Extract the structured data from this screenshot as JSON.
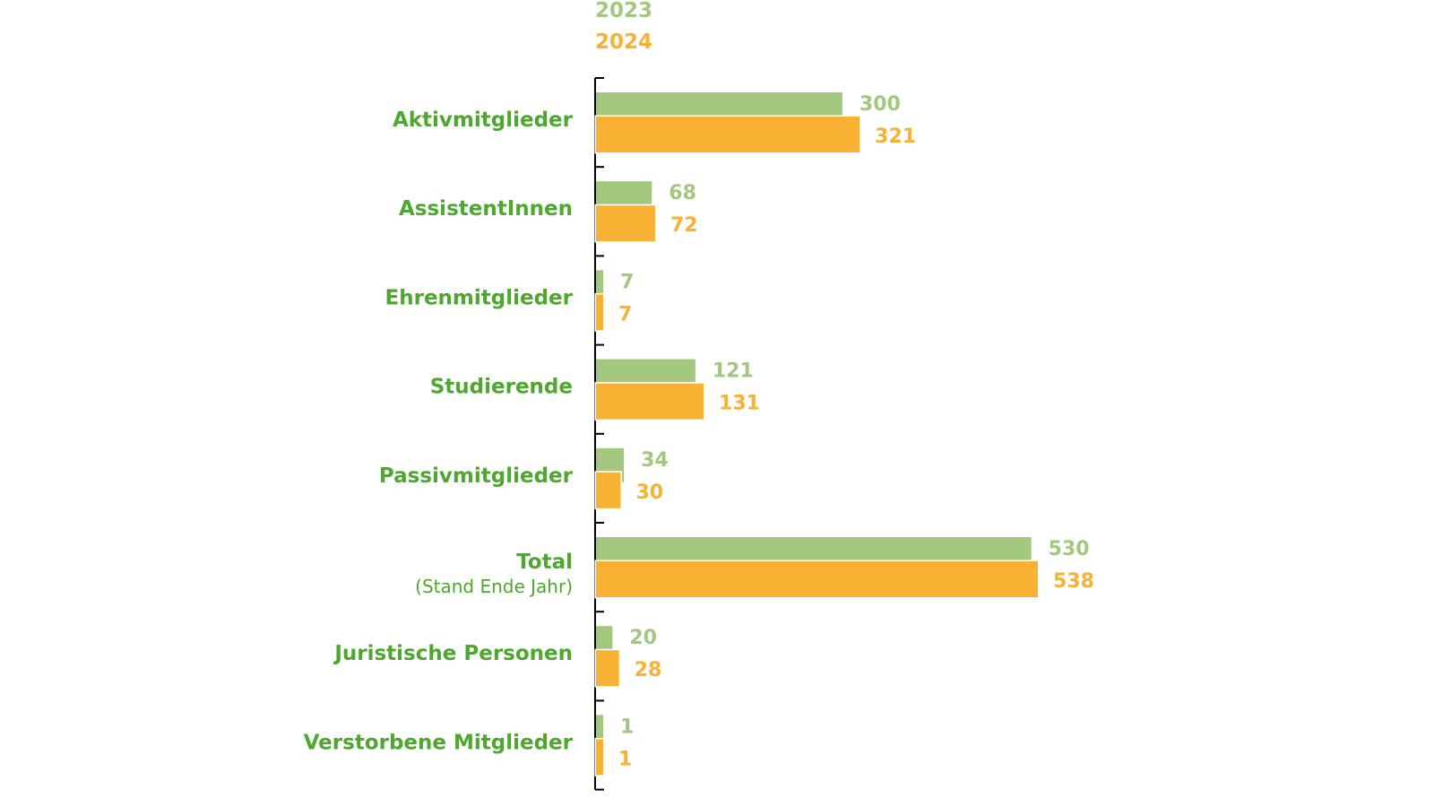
{
  "chart_data": {
    "type": "bar",
    "orientation": "horizontal",
    "title": "",
    "xlabel": "",
    "ylabel": "",
    "categories": [
      "Aktivmitglieder",
      "AssistentInnen",
      "Ehrenmitglieder",
      "Studierende",
      "Passivmitglieder",
      "Total",
      "Juristische Personen",
      "Verstorbene Mitglieder"
    ],
    "category_sublabels": {
      "Total": "(Stand Ende Jahr)"
    },
    "series": [
      {
        "name": "2023",
        "color": "#a3c77f",
        "values": [
          300,
          68,
          7,
          121,
          34,
          530,
          20,
          1
        ]
      },
      {
        "name": "2024",
        "color": "#f8b133",
        "values": [
          321,
          72,
          7,
          131,
          30,
          538,
          28,
          1
        ]
      }
    ],
    "legend_position": "top",
    "category_color": "#4ea72e",
    "grid": false,
    "xlim": [
      0,
      560
    ]
  }
}
